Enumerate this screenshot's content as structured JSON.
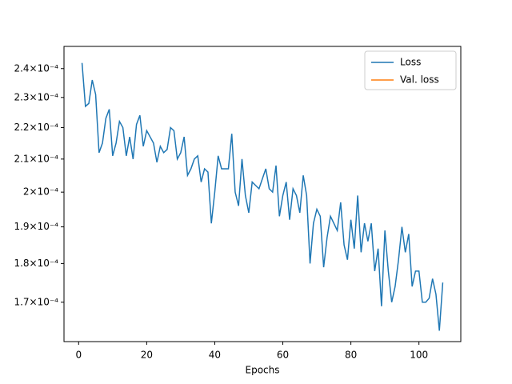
{
  "chart_data": {
    "type": "line",
    "xlabel": "Epochs",
    "x": [
      1,
      2,
      3,
      4,
      5,
      6,
      7,
      8,
      9,
      10,
      11,
      12,
      13,
      14,
      15,
      16,
      17,
      18,
      19,
      20,
      21,
      22,
      23,
      24,
      25,
      26,
      27,
      28,
      29,
      30,
      31,
      32,
      33,
      34,
      35,
      36,
      37,
      38,
      39,
      40,
      41,
      42,
      43,
      44,
      45,
      46,
      47,
      48,
      49,
      50,
      51,
      52,
      53,
      54,
      55,
      56,
      57,
      58,
      59,
      60,
      61,
      62,
      63,
      64,
      65,
      66,
      67,
      68,
      69,
      70,
      71,
      72,
      73,
      74,
      75,
      76,
      77,
      78,
      79,
      80,
      81,
      82,
      83,
      84,
      85,
      86,
      87,
      88,
      89,
      90,
      91,
      92,
      93,
      94,
      95,
      96,
      97,
      98,
      99,
      100,
      101,
      102,
      103,
      104,
      105,
      106,
      107
    ],
    "series": [
      {
        "name": "Loss",
        "color": "#1f77b4",
        "values": [
          0.000242,
          0.000227,
          0.000228,
          0.000236,
          0.000231,
          0.000212,
          0.000215,
          0.000223,
          0.000226,
          0.000211,
          0.000215,
          0.000222,
          0.00022,
          0.000211,
          0.000217,
          0.00021,
          0.000221,
          0.000224,
          0.000214,
          0.000219,
          0.000217,
          0.000215,
          0.000209,
          0.000214,
          0.000212,
          0.000213,
          0.00022,
          0.000219,
          0.00021,
          0.000212,
          0.000217,
          0.000205,
          0.000207,
          0.00021,
          0.000211,
          0.000203,
          0.000207,
          0.000206,
          0.000191,
          0.0002,
          0.000211,
          0.000207,
          0.000207,
          0.000207,
          0.000218,
          0.0002,
          0.000196,
          0.00021,
          0.000199,
          0.000194,
          0.000203,
          0.000202,
          0.000201,
          0.000204,
          0.000207,
          0.000201,
          0.0002,
          0.000208,
          0.000193,
          0.000199,
          0.000203,
          0.000192,
          0.000201,
          0.000199,
          0.000194,
          0.000205,
          0.000199,
          0.00018,
          0.000191,
          0.000195,
          0.000193,
          0.000179,
          0.000187,
          0.000193,
          0.000191,
          0.000189,
          0.000197,
          0.000185,
          0.000181,
          0.000192,
          0.000184,
          0.000199,
          0.000183,
          0.000191,
          0.000186,
          0.000191,
          0.000178,
          0.000184,
          0.000169,
          0.000189,
          0.000178,
          0.00017,
          0.000174,
          0.000181,
          0.00019,
          0.000183,
          0.000188,
          0.000174,
          0.000178,
          0.000178,
          0.00017,
          0.00017,
          0.000171,
          0.000176,
          0.000172,
          0.000163,
          0.000175
        ]
      },
      {
        "name": "Val. loss",
        "color": "#ff7f0e",
        "values": [
          null,
          null,
          null,
          null,
          null,
          null,
          null,
          null,
          null,
          null,
          null,
          null,
          null,
          null,
          null,
          null,
          null,
          null,
          null,
          null,
          null,
          null,
          null,
          null,
          null,
          null,
          null,
          null,
          null,
          null,
          null,
          null,
          null,
          null,
          null,
          null,
          null,
          null,
          null,
          null,
          null,
          null,
          null,
          null,
          null,
          null,
          null,
          null,
          null,
          null,
          null,
          null,
          null,
          null,
          null,
          null,
          null,
          null,
          null,
          null,
          null,
          null,
          null,
          null,
          null,
          null,
          null,
          null,
          null,
          null,
          null,
          null,
          null,
          null,
          null,
          null,
          null,
          null,
          null,
          null,
          null,
          null,
          null,
          null,
          null,
          null,
          null,
          null,
          null,
          null,
          null,
          null,
          null,
          null,
          null,
          null,
          null,
          null,
          null,
          null,
          null,
          null,
          null,
          null,
          null,
          null,
          null
        ]
      }
    ],
    "xlim": [
      -4.3,
      112.3
    ],
    "xticks": [
      0,
      20,
      40,
      60,
      80,
      100
    ],
    "ylim": [
      0.0001604,
      0.000248
    ],
    "ylog": true,
    "yticks": [
      {
        "value": 0.00017,
        "label": "1.7×10⁻⁴"
      },
      {
        "value": 0.00018,
        "label": "1.8×10⁻⁴"
      },
      {
        "value": 0.00019,
        "label": "1.9×10⁻⁴"
      },
      {
        "value": 0.0002,
        "label": "2×10⁻⁴"
      },
      {
        "value": 0.00021,
        "label": "2.1×10⁻⁴"
      },
      {
        "value": 0.00022,
        "label": "2.2×10⁻⁴"
      },
      {
        "value": 0.00023,
        "label": "2.3×10⁻⁴"
      },
      {
        "value": 0.00024,
        "label": "2.4×10⁻⁴"
      }
    ],
    "legend": "upper right"
  }
}
